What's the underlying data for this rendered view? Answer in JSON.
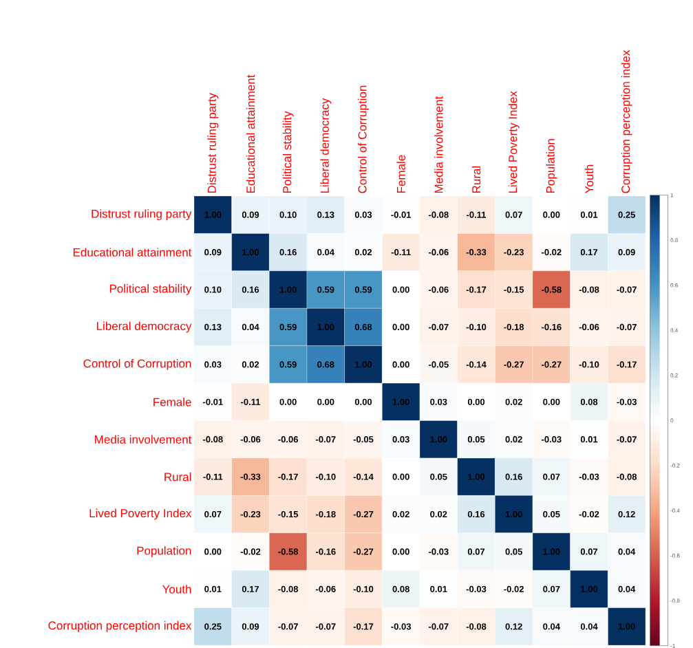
{
  "chart_data": {
    "type": "heatmap",
    "categories": [
      "Distrust ruling party",
      "Educational attainment",
      "Political stability",
      "Liberal democracy",
      "Control of Corruption",
      "Female",
      "Media involvement",
      "Rural",
      "Lived Poverty Index",
      "Population",
      "Youth",
      "Corruption perception index"
    ],
    "y_categories": [
      "Distrust ruling party",
      "Educational attainment",
      "Political stability",
      "Liberal democracy",
      "Control of Corruption",
      "Female",
      "Media involvement",
      "Rural",
      "Lived Poverty Index",
      "Population",
      "Youth",
      "Corruption perception index"
    ],
    "cells": [
      [
        1.0,
        0.09,
        0.1,
        0.13,
        0.03,
        -0.01,
        -0.08,
        -0.11,
        0.07,
        0.0,
        0.01,
        0.25
      ],
      [
        0.09,
        1.0,
        0.16,
        0.04,
        0.02,
        -0.11,
        -0.06,
        -0.33,
        -0.23,
        -0.02,
        0.17,
        0.09
      ],
      [
        0.1,
        0.16,
        1.0,
        0.59,
        0.59,
        0.0,
        -0.06,
        -0.17,
        -0.15,
        -0.58,
        -0.08,
        -0.07
      ],
      [
        0.13,
        0.04,
        0.59,
        1.0,
        0.68,
        0.0,
        -0.07,
        -0.1,
        -0.18,
        -0.16,
        -0.06,
        -0.07
      ],
      [
        0.03,
        0.02,
        0.59,
        0.68,
        1.0,
        0.0,
        -0.05,
        -0.14,
        -0.27,
        -0.27,
        -0.1,
        -0.17
      ],
      [
        -0.01,
        -0.11,
        0.0,
        0.0,
        0.0,
        1.0,
        0.03,
        0.0,
        0.02,
        0.0,
        0.08,
        -0.03
      ],
      [
        -0.08,
        -0.06,
        -0.06,
        -0.07,
        -0.05,
        0.03,
        1.0,
        0.05,
        0.02,
        -0.03,
        0.01,
        -0.07
      ],
      [
        -0.11,
        -0.33,
        -0.17,
        -0.1,
        -0.14,
        0.0,
        0.05,
        1.0,
        0.16,
        0.07,
        -0.03,
        -0.08
      ],
      [
        0.07,
        -0.23,
        -0.15,
        -0.18,
        -0.27,
        0.02,
        0.02,
        0.16,
        1.0,
        0.05,
        -0.02,
        0.12
      ],
      [
        0.0,
        -0.02,
        -0.58,
        -0.16,
        -0.27,
        0.0,
        -0.03,
        0.07,
        0.05,
        1.0,
        0.07,
        0.04
      ],
      [
        0.01,
        0.17,
        -0.08,
        -0.06,
        -0.1,
        0.08,
        0.01,
        -0.03,
        -0.02,
        0.07,
        1.0,
        0.04
      ],
      [
        0.25,
        0.09,
        -0.07,
        -0.07,
        -0.17,
        -0.03,
        -0.07,
        -0.08,
        0.12,
        0.04,
        0.04,
        1.0
      ]
    ],
    "cell_labels": [
      [
        "1.00",
        "0.09",
        "0.10",
        "0.13",
        "0.03",
        "-0.01",
        "-0.08",
        "-0.11",
        "0.07",
        "0.00",
        "0.01",
        "0.25"
      ],
      [
        "0.09",
        "1.00",
        "0.16",
        "0.04",
        "0.02",
        "-0.11",
        "-0.06",
        "-0.33",
        "-0.23",
        "-0.02",
        "0.17",
        "0.09"
      ],
      [
        "0.10",
        "0.16",
        "1.00",
        "0.59",
        "0.59",
        "0.00",
        "-0.06",
        "-0.17",
        "-0.15",
        "-0.58",
        "-0.08",
        "-0.07"
      ],
      [
        "0.13",
        "0.04",
        "0.59",
        "1.00",
        "0.68",
        "0.00",
        "-0.07",
        "-0.10",
        "-0.18",
        "-0.16",
        "-0.06",
        "-0.07"
      ],
      [
        "0.03",
        "0.02",
        "0.59",
        "0.68",
        "1.00",
        "0.00",
        "-0.05",
        "-0.14",
        "-0.27",
        "-0.27",
        "-0.10",
        "-0.17"
      ],
      [
        "-0.01",
        "-0.11",
        "0.00",
        "0.00",
        "0.00",
        "1.00",
        "0.03",
        "0.00",
        "0.02",
        "0.00",
        "0.08",
        "-0.03"
      ],
      [
        "-0.08",
        "-0.06",
        "-0.06",
        "-0.07",
        "-0.05",
        "0.03",
        "1.00",
        "0.05",
        "0.02",
        "-0.03",
        "0.01",
        "-0.07"
      ],
      [
        "-0.11",
        "-0.33",
        "-0.17",
        "-0.10",
        "-0.14",
        "0.00",
        "0.05",
        "1.00",
        "0.16",
        "0.07",
        "-0.03",
        "-0.08"
      ],
      [
        "0.07",
        "-0.23",
        "-0.15",
        "-0.18",
        "-0.27",
        "0.02",
        "0.02",
        "0.16",
        "1.00",
        "0.05",
        "-0.02",
        "0.12"
      ],
      [
        "0.00",
        "-0.02",
        "-0.58",
        "-0.16",
        "-0.27",
        "0.00",
        "-0.03",
        "0.07",
        "0.05",
        "1.00",
        "0.07",
        "0.04"
      ],
      [
        "0.01",
        "0.17",
        "-0.08",
        "-0.06",
        "-0.10",
        "0.08",
        "0.01",
        "-0.03",
        "-0.02",
        "0.07",
        "1.00",
        "0.04"
      ],
      [
        "0.25",
        "0.09",
        "-0.07",
        "-0.07",
        "-0.17",
        "-0.03",
        "-0.07",
        "-0.08",
        "0.12",
        "0.04",
        "0.04",
        "1.00"
      ]
    ],
    "clim": [
      -1,
      1
    ],
    "cticks": [
      -1,
      -0.8,
      -0.6,
      -0.4,
      -0.2,
      0,
      0.2,
      0.4,
      0.6,
      0.8,
      1
    ]
  }
}
